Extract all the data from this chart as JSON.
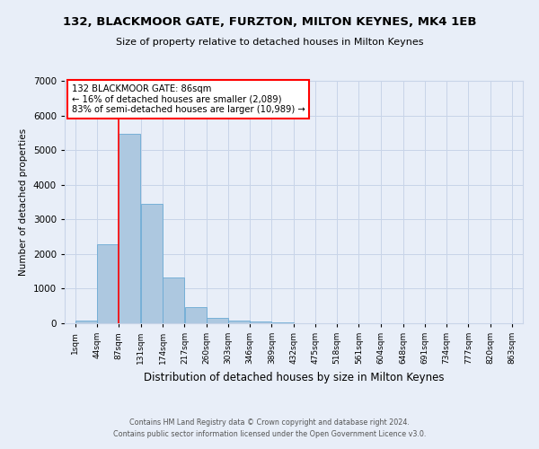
{
  "title": "132, BLACKMOOR GATE, FURZTON, MILTON KEYNES, MK4 1EB",
  "subtitle": "Size of property relative to detached houses in Milton Keynes",
  "xlabel": "Distribution of detached houses by size in Milton Keynes",
  "ylabel": "Number of detached properties",
  "bar_color": "#adc8e0",
  "bar_edge_color": "#6aaad4",
  "bin_edges": [
    1,
    44,
    87,
    131,
    174,
    217,
    260,
    303,
    346,
    389,
    432,
    475,
    518,
    561,
    604,
    648,
    691,
    734,
    777,
    820,
    863
  ],
  "bin_labels": [
    "1sqm",
    "44sqm",
    "87sqm",
    "131sqm",
    "174sqm",
    "217sqm",
    "260sqm",
    "303sqm",
    "346sqm",
    "389sqm",
    "432sqm",
    "475sqm",
    "518sqm",
    "561sqm",
    "604sqm",
    "648sqm",
    "691sqm",
    "734sqm",
    "777sqm",
    "820sqm",
    "863sqm"
  ],
  "bar_heights": [
    80,
    2280,
    5480,
    3450,
    1320,
    470,
    155,
    80,
    55,
    30,
    0,
    0,
    0,
    0,
    0,
    0,
    0,
    0,
    0,
    0
  ],
  "property_label": "132 BLACKMOOR GATE: 86sqm",
  "annotation_line1": "← 16% of detached houses are smaller (2,089)",
  "annotation_line2": "83% of semi-detached houses are larger (10,989) →",
  "annotation_box_color": "white",
  "annotation_box_edge_color": "red",
  "vline_color": "red",
  "vline_x": 87,
  "ylim": [
    0,
    7000
  ],
  "yticks": [
    0,
    1000,
    2000,
    3000,
    4000,
    5000,
    6000,
    7000
  ],
  "grid_color": "#c8d4e8",
  "bg_color": "#e8eef8",
  "footer_line1": "Contains HM Land Registry data © Crown copyright and database right 2024.",
  "footer_line2": "Contains public sector information licensed under the Open Government Licence v3.0."
}
